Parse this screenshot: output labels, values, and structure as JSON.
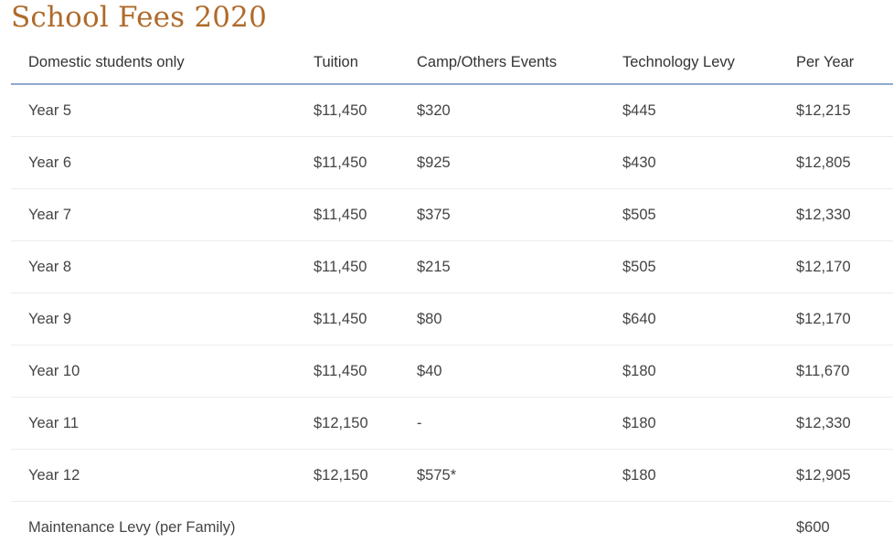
{
  "page": {
    "title": "School Fees 2020"
  },
  "table": {
    "headers": [
      "Domestic students only",
      "Tuition",
      "Camp/Others Events",
      "Technology Levy",
      "Per Year"
    ],
    "rows": [
      [
        "Year 5",
        "$11,450",
        "$320",
        "$445",
        "$12,215"
      ],
      [
        "Year 6",
        "$11,450",
        "$925",
        "$430",
        "$12,805"
      ],
      [
        "Year 7",
        "$11,450",
        "$375",
        "$505",
        "$12,330"
      ],
      [
        "Year 8",
        "$11,450",
        "$215",
        "$505",
        "$12,170"
      ],
      [
        "Year 9",
        "$11,450",
        "$80",
        "$640",
        "$12,170"
      ],
      [
        "Year 10",
        "$11,450",
        "$40",
        "$180",
        "$11,670"
      ],
      [
        "Year 11",
        "$12,150",
        "-",
        "$180",
        "$12,330"
      ],
      [
        "Year 12",
        "$12,150",
        "$575*",
        "$180",
        "$12,905"
      ],
      [
        "Maintenance Levy (per Family)",
        "",
        "",
        "",
        "$600"
      ]
    ]
  },
  "colors": {
    "title": "#b06a2a",
    "header_rule": "#8ea9cf",
    "row_divider": "#ececec",
    "text": "#444444"
  }
}
